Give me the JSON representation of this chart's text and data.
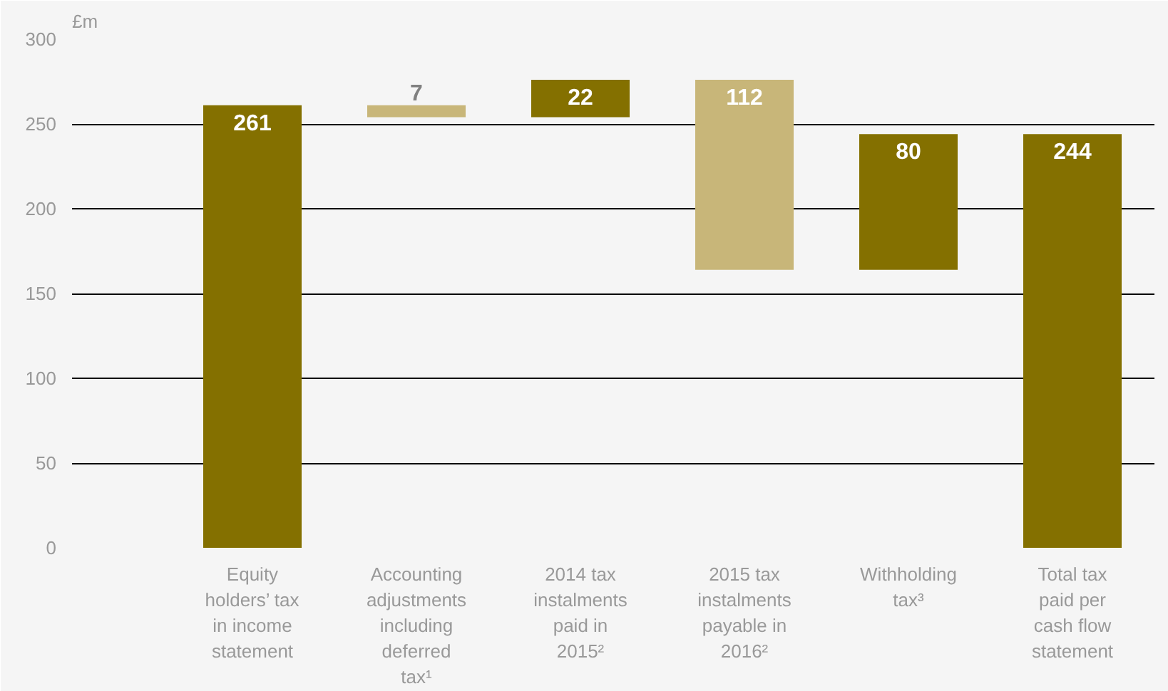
{
  "chart_data": {
    "type": "bar",
    "ylabel": "£m",
    "categories": [
      "Equity holders’ tax in income statement",
      "Accounting adjustments including deferred tax¹",
      "2014 tax instalments paid in 2015²",
      "2015 tax instalments payable in 2016²",
      "Withholding tax³",
      "Total tax paid per cash flow statement"
    ],
    "values": [
      261,
      7,
      22,
      112,
      80,
      244
    ],
    "base": [
      0,
      254,
      254,
      164,
      164,
      0
    ],
    "colors": [
      "#847000",
      "#c8b679",
      "#847000",
      "#c8b679",
      "#847000",
      "#847000"
    ],
    "ylim": [
      0,
      300
    ],
    "yticks": [
      0,
      50,
      100,
      150,
      200,
      250,
      300
    ],
    "grid": "y",
    "data_labels": true
  }
}
